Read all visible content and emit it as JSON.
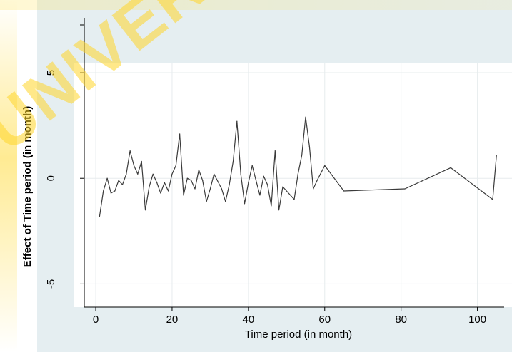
{
  "watermark": {
    "text": "UNIVERSITY OF IBADAN"
  },
  "colors": {
    "outer_bg": "#e5eef1",
    "plot_bg": "#ffffff",
    "grid": "#e7ecee",
    "line": "#3a3a3a",
    "watermark": "#ffd628"
  },
  "chart_data": {
    "type": "line",
    "title": "",
    "xlabel": "Time period (in month)",
    "ylabel": "Effect of Time period (in month)",
    "xlim": [
      -3,
      107
    ],
    "ylim": [
      -6.1,
      7.6
    ],
    "x_ticks": [
      0,
      20,
      40,
      60,
      80,
      100
    ],
    "y_ticks": [
      -5,
      0,
      5
    ],
    "grid": true,
    "legend": "none",
    "series": [
      {
        "x": [
          1,
          2,
          3,
          4,
          5,
          6,
          7,
          8,
          9,
          10,
          11,
          12,
          13,
          14,
          15,
          16,
          17,
          18,
          19,
          20,
          21,
          22,
          23,
          24,
          25,
          26,
          27,
          28,
          29,
          30,
          31,
          33,
          34,
          35,
          36,
          37,
          38,
          39,
          40,
          41,
          42,
          43,
          44,
          45,
          46,
          47,
          48,
          49,
          51,
          52,
          53,
          54,
          55,
          56,
          57,
          58,
          60,
          65,
          81,
          93,
          104,
          105
        ],
        "y": [
          -1.8,
          -0.6,
          0,
          -0.7,
          -0.6,
          -0.1,
          -0.3,
          0.2,
          1.3,
          0.6,
          0.2,
          0.8,
          -1.5,
          -0.4,
          0.2,
          -0.2,
          -0.7,
          -0.2,
          -0.6,
          0.2,
          0.6,
          2.1,
          -0.8,
          0,
          -0.1,
          -0.5,
          0.4,
          -0.1,
          -1.1,
          -0.5,
          0.2,
          -0.5,
          -1.1,
          -0.3,
          0.8,
          2.7,
          0.2,
          -1.2,
          -0.2,
          0.6,
          -0.1,
          -0.8,
          0.1,
          -0.3,
          -1.3,
          1.3,
          -1.5,
          -0.4,
          -0.8,
          -1.0,
          0.2,
          1.1,
          2.9,
          1.5,
          -0.5,
          -0.1,
          0.6,
          -0.6,
          -0.5,
          0.5,
          -1.0,
          1.1
        ]
      }
    ]
  }
}
